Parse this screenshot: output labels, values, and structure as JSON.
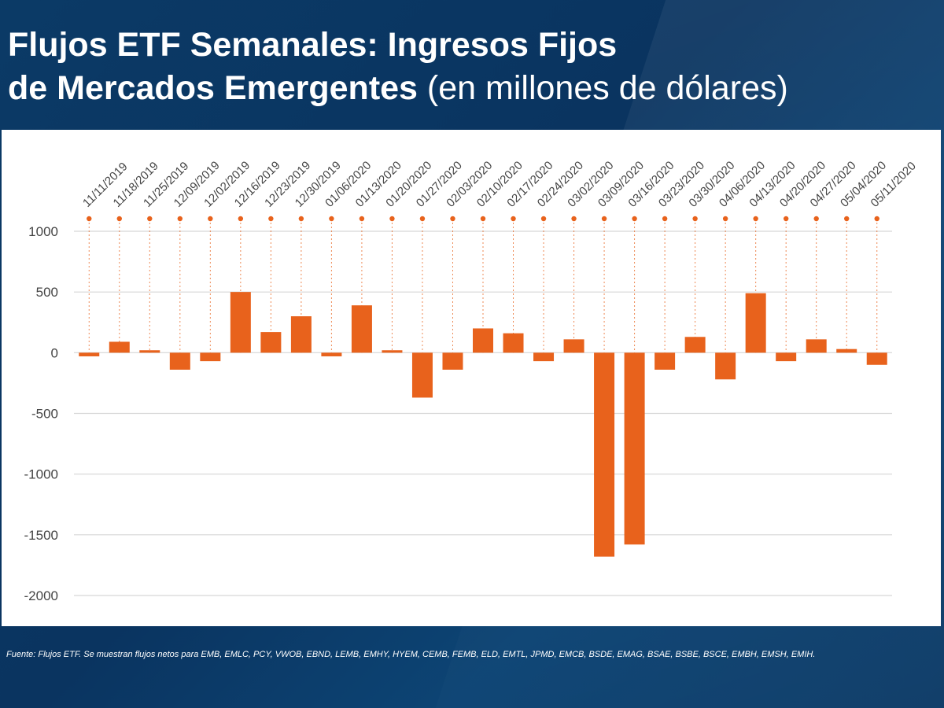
{
  "title": {
    "line1": "Flujos ETF Semanales: Ingresos Fijos",
    "line2_bold": "de Mercados Emergentes",
    "line2_light": " (en millones de dólares)"
  },
  "footnote": "Fuente: Flujos ETF. Se muestran flujos netos para EMB, EMLC, PCY, VWOB, EBND, LEMB, EMHY, HYEM, CEMB, FEMB, ELD, EMTL, JPMD, EMCB, BSDE, EMAG, BSAE, BSBE, BSCE, EMBH, EMSH, EMIH.",
  "colors": {
    "bar": "#e8621c",
    "accent_dot": "#e8621c",
    "grid": "#d6d6d6",
    "background": "#0b3a66"
  },
  "chart_data": {
    "type": "bar",
    "categories": [
      "11/11/2019",
      "11/18/2019",
      "11/25/2019",
      "12/09/2019",
      "12/02/2019",
      "12/16/2019",
      "12/23/2019",
      "12/30/2019",
      "01/06/2020",
      "01/13/2020",
      "01/20/2020",
      "01/27/2020",
      "02/03/2020",
      "02/10/2020",
      "02/17/2020",
      "02/24/2020",
      "03/02/2020",
      "03/09/2020",
      "03/16/2020",
      "03/23/2020",
      "03/30/2020",
      "04/06/2020",
      "04/13/2020",
      "04/20/2020",
      "04/27/2020",
      "05/04/2020",
      "05/11/2020"
    ],
    "values": [
      -30,
      90,
      20,
      -140,
      -70,
      500,
      170,
      300,
      -30,
      390,
      20,
      -370,
      -140,
      200,
      160,
      -70,
      110,
      -1680,
      -1580,
      -140,
      130,
      -220,
      490,
      -70,
      110,
      30,
      -100
    ],
    "yticks": [
      1000,
      500,
      0,
      -500,
      -1000,
      -1500,
      -2000
    ],
    "ylim": [
      -2000,
      1000
    ],
    "title": "Flujos ETF Semanales: Ingresos Fijos de Mercados Emergentes (en millones de dólares)",
    "xlabel": "",
    "ylabel": "",
    "grid": true
  }
}
